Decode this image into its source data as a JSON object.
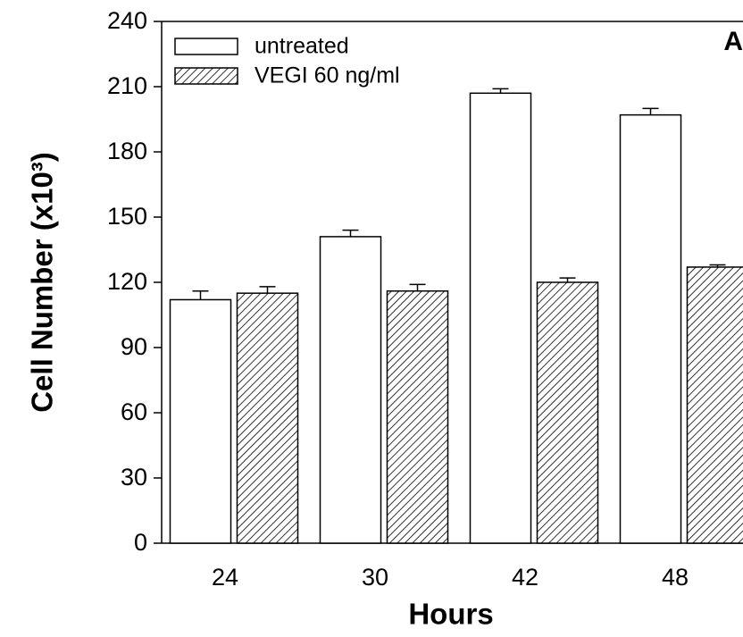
{
  "chart_data": {
    "type": "bar",
    "annotation": "A",
    "xlabel": "Hours",
    "ylabel": "Cell Number (x10³)",
    "categories": [
      "24",
      "30",
      "42",
      "48"
    ],
    "series": [
      {
        "name": "untreated",
        "color": "#ffffff",
        "hatch": false,
        "values": [
          112,
          141,
          207,
          197
        ],
        "errors": [
          4,
          3,
          2,
          3
        ]
      },
      {
        "name": "VEGI 60 ng/ml",
        "color": "#ffffff",
        "hatch": true,
        "values": [
          115,
          116,
          120,
          127
        ],
        "errors": [
          3,
          3,
          2,
          1
        ]
      }
    ],
    "ylim": [
      0,
      240
    ],
    "yticks": [
      0,
      30,
      60,
      90,
      120,
      150,
      180,
      210,
      240
    ],
    "legend": "upper left",
    "grid": false
  }
}
